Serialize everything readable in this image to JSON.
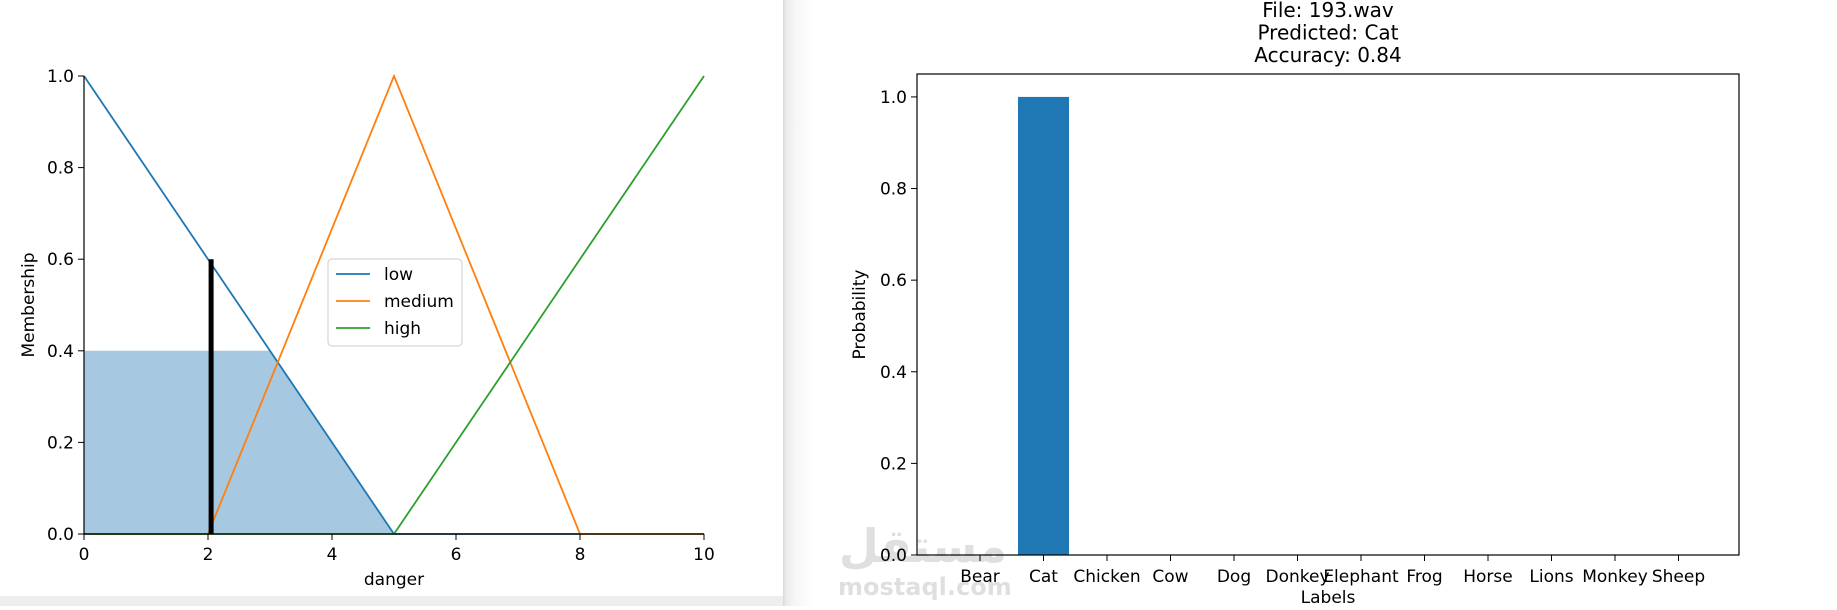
{
  "chart_data": [
    {
      "type": "line",
      "xlabel": "danger",
      "ylabel": "Membership",
      "xlim": [
        0,
        10
      ],
      "ylim": [
        0,
        1
      ],
      "xticks": [
        "0",
        "2",
        "4",
        "6",
        "8",
        "10"
      ],
      "yticks": [
        "0.0",
        "0.2",
        "0.4",
        "0.6",
        "0.8",
        "1.0"
      ],
      "series": [
        {
          "name": "low",
          "color": "#1f77b4",
          "points": [
            [
              0,
              1.0
            ],
            [
              5,
              0.0
            ],
            [
              10,
              0.0
            ]
          ]
        },
        {
          "name": "medium",
          "color": "#ff7f0e",
          "points": [
            [
              0,
              0.0
            ],
            [
              2,
              0.0
            ],
            [
              5,
              1.0
            ],
            [
              8,
              0.0
            ],
            [
              10,
              0.0
            ]
          ]
        },
        {
          "name": "high",
          "color": "#2ca02c",
          "points": [
            [
              0,
              0.0
            ],
            [
              5,
              0.0
            ],
            [
              10,
              1.0
            ]
          ]
        }
      ],
      "activation": {
        "level": 0.4,
        "color": "#a6c8e0",
        "points": [
          [
            0,
            0.4
          ],
          [
            3.0,
            0.4
          ],
          [
            5,
            0.0
          ]
        ]
      },
      "crisp_output": {
        "x": 2.05,
        "membership": 0.6
      },
      "legend": {
        "placement": "center"
      },
      "grid": false
    },
    {
      "type": "bar",
      "title_lines": [
        "File: 193.wav",
        "Predicted: Cat",
        "Accuracy: 0.84"
      ],
      "xlabel": "Labels",
      "ylabel": "Probability",
      "categories": [
        "Bear",
        "Cat",
        "Chicken",
        "Cow",
        "Dog",
        "Donkey",
        "Elephant",
        "Frog",
        "Horse",
        "Lions",
        "Monkey",
        "Sheep"
      ],
      "values": [
        0,
        1.0,
        0,
        0,
        0,
        0,
        0,
        0,
        0,
        0,
        0,
        0
      ],
      "yticks": [
        "0.0",
        "0.2",
        "0.4",
        "0.6",
        "0.8",
        "1.0"
      ],
      "ylim": [
        0,
        1.05
      ],
      "bar_color": "#1f77b4",
      "grid": false
    }
  ],
  "watermark": {
    "arabic": "مستقل",
    "latin": "mostaql.com"
  }
}
